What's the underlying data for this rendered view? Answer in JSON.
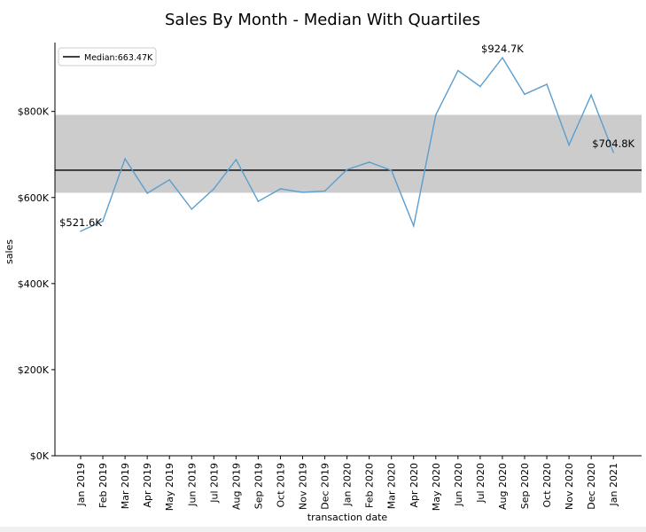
{
  "chart_data": {
    "type": "line",
    "title": "Sales By Month - Median With Quartiles",
    "xlabel": "transaction date",
    "ylabel": "sales",
    "ylim": [
      0,
      960000
    ],
    "yticks": [
      0,
      200000,
      400000,
      600000,
      800000
    ],
    "ytick_labels": [
      "$0K",
      "$200K",
      "$400K",
      "$600K",
      "$800K"
    ],
    "categories": [
      "Jan 2019",
      "Feb 2019",
      "Mar 2019",
      "Apr 2019",
      "May 2019",
      "Jun 2019",
      "Jul 2019",
      "Aug 2019",
      "Sep 2019",
      "Oct 2019",
      "Nov 2019",
      "Dec 2019",
      "Jan 2020",
      "Feb 2020",
      "Mar 2020",
      "Apr 2020",
      "May 2020",
      "Jun 2020",
      "Jul 2020",
      "Aug 2020",
      "Sep 2020",
      "Oct 2020",
      "Nov 2020",
      "Dec 2020",
      "Jan 2021"
    ],
    "series": [
      {
        "name": "sales",
        "color": "#5b9fd0",
        "values": [
          521600,
          545000,
          690000,
          610000,
          641000,
          573000,
          620000,
          688000,
          591000,
          620000,
          612000,
          615000,
          665000,
          682000,
          663000,
          534000,
          792000,
          895000,
          858000,
          924700,
          840000,
          863000,
          722000,
          838000,
          704800
        ]
      }
    ],
    "median": 663470,
    "quartile_band": [
      611000,
      792000
    ],
    "band_color": "#cccccc",
    "median_color": "#000000",
    "legend": {
      "label": "Median:663.47K",
      "position": "top-left"
    },
    "annotations": [
      {
        "index": 0,
        "text": "$521.6K"
      },
      {
        "index": 19,
        "text": "$924.7K"
      },
      {
        "index": 24,
        "text": "$704.8K"
      }
    ]
  }
}
